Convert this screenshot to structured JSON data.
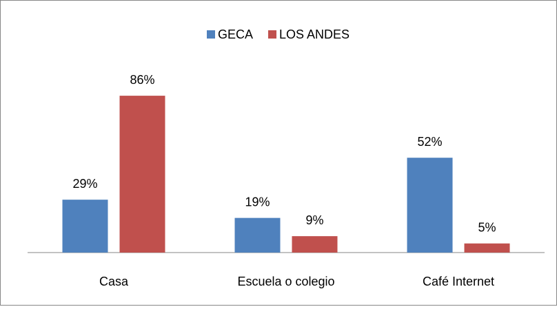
{
  "chart_data": {
    "type": "bar",
    "categories": [
      "Casa",
      "Escuela o colegio",
      "Café Internet"
    ],
    "series": [
      {
        "name": "GECA",
        "color": "#4f81bd",
        "values": [
          29,
          19,
          52
        ],
        "value_labels": [
          "29%",
          "19%",
          "52%"
        ]
      },
      {
        "name": "LOS ANDES",
        "color": "#c0504d",
        "values": [
          86,
          9,
          5
        ],
        "value_labels": [
          "86%",
          "9%",
          "5%"
        ]
      }
    ],
    "legend": "top"
  }
}
